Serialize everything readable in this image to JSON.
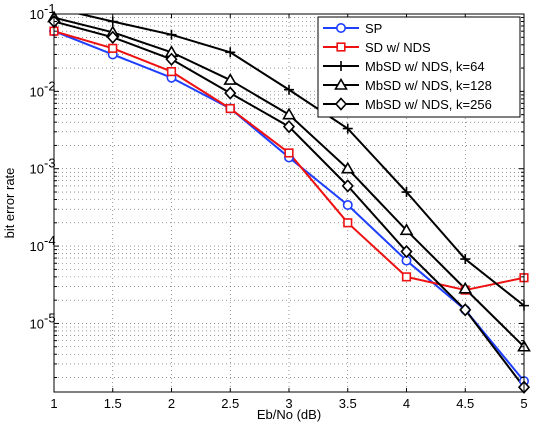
{
  "chart_data": {
    "type": "line",
    "xlabel": "Eb/No (dB)",
    "ylabel": "bit error rate",
    "x": [
      1,
      1.5,
      2,
      2.5,
      3,
      3.5,
      4,
      4.5,
      5
    ],
    "xlim": [
      1,
      5
    ],
    "ylim": [
      1.3e-06,
      0.1
    ],
    "yscale": "log",
    "grid": true,
    "legend_position": "top-right",
    "x_ticks": [
      1,
      1.5,
      2,
      2.5,
      3,
      3.5,
      4,
      4.5,
      5
    ],
    "x_tick_labels": [
      "1",
      "1.5",
      "2",
      "2.5",
      "3",
      "3.5",
      "4",
      "4.5",
      "5"
    ],
    "y_ticks": [
      1e-05,
      0.0001,
      0.001,
      0.01,
      0.1
    ],
    "y_tick_labels": [
      {
        "base": "10",
        "exp": "-5"
      },
      {
        "base": "10",
        "exp": "-4"
      },
      {
        "base": "10",
        "exp": "-3"
      },
      {
        "base": "10",
        "exp": "-2"
      },
      {
        "base": "10",
        "exp": "-1"
      }
    ],
    "series": [
      {
        "name": "SP",
        "color": "#1f3fff",
        "marker": "circle",
        "values": [
          0.06,
          0.03,
          0.015,
          0.006,
          0.0014,
          0.00034,
          6.5e-05,
          1.5e-05,
          1.8e-06
        ]
      },
      {
        "name": "SD w/ NDS",
        "color": "#ee1111",
        "marker": "square",
        "values": [
          0.06,
          0.036,
          0.018,
          0.006,
          0.0016,
          0.0002,
          4e-05,
          2.7e-05,
          3.9e-05
        ]
      },
      {
        "name": "MbSD w/ NDS, k=64",
        "color": "#000000",
        "marker": "plus",
        "values": [
          0.12,
          0.08,
          0.054,
          0.032,
          0.0105,
          0.0033,
          0.0005,
          6.8e-05,
          1.7e-05
        ]
      },
      {
        "name": "MbSD w/ NDS, k=128",
        "color": "#000000",
        "marker": "triangle",
        "values": [
          0.09,
          0.058,
          0.032,
          0.014,
          0.005,
          0.001,
          0.00016,
          2.8e-05,
          5e-06
        ]
      },
      {
        "name": "MbSD w/ NDS, k=256",
        "color": "#000000",
        "marker": "diamond",
        "values": [
          0.08,
          0.05,
          0.026,
          0.0095,
          0.0035,
          0.0006,
          8.5e-05,
          1.5e-05,
          1.5e-06
        ]
      }
    ]
  }
}
